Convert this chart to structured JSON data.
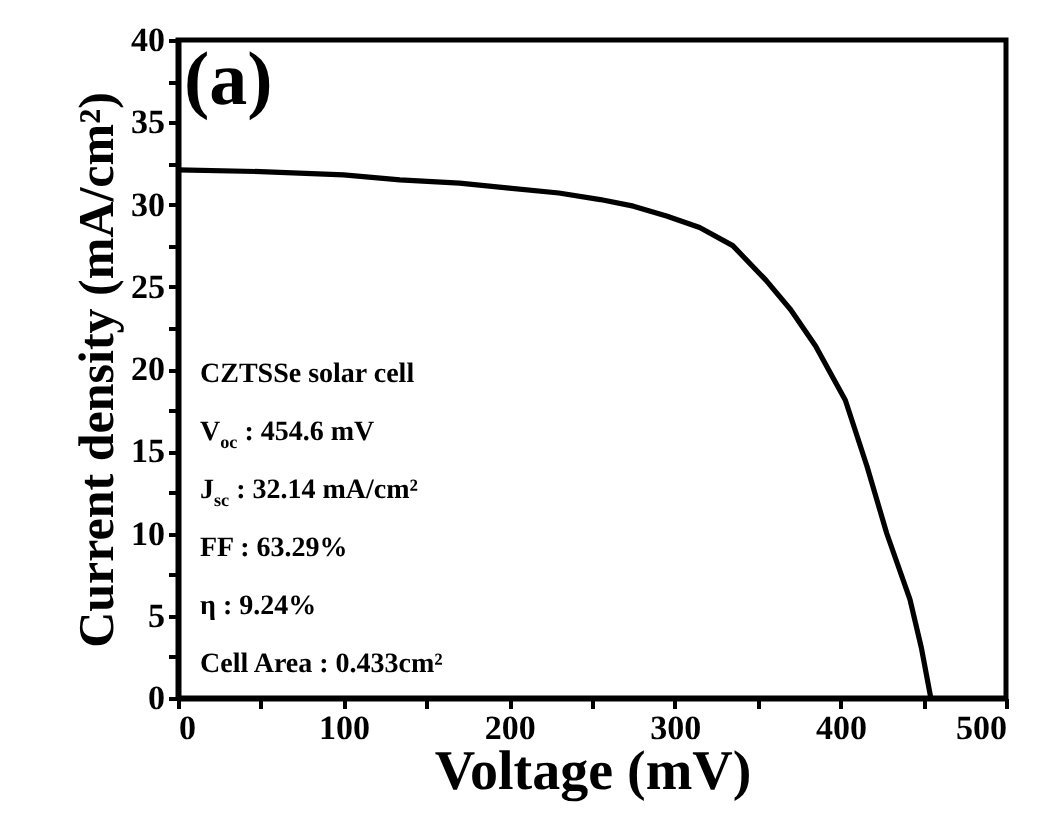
{
  "chart_data": {
    "type": "line",
    "xlabel": "Voltage (mV)",
    "ylabel": "Current density (mA/cm²)",
    "annotations": [
      "(a)",
      "CZTSSe solar cell",
      "V$_{oc}$ : 454.6 mV",
      "J$_{sc}$ : 32.14 mA/cm²",
      "FF : 63.29%",
      "η  : 9.24%",
      "Cell Area : 0.433cm²"
    ],
    "x": [
      0,
      50,
      100,
      134,
      170,
      200,
      230,
      255,
      275,
      295,
      315,
      335,
      355,
      370,
      385,
      403,
      416,
      428,
      442,
      449,
      454.6
    ],
    "series": [
      {
        "color": "#000000",
        "values": [
          32.1,
          32.0,
          31.8,
          31.5,
          31.3,
          31.0,
          30.7,
          30.3,
          29.9,
          29.3,
          28.6,
          27.5,
          25.4,
          23.6,
          21.4,
          18.1,
          14.1,
          10.0,
          6.0,
          3.0,
          0
        ]
      }
    ],
    "xlim": [
      0,
      500
    ],
    "ylim": [
      0,
      40
    ],
    "xticks": [
      0,
      {
        "value": 50,
        "label": null
      },
      100,
      {
        "value": 150,
        "label": null
      },
      200,
      {
        "value": 250,
        "label": null
      },
      300,
      {
        "value": 350,
        "label": null
      },
      400,
      {
        "value": 450,
        "label": null
      },
      500
    ],
    "yticks": [
      0,
      {
        "value": 2.5,
        "label": null
      },
      5,
      {
        "value": 7.5,
        "label": null
      },
      10,
      {
        "value": 12.5,
        "label": null
      },
      15,
      {
        "value": 17.5,
        "label": null
      },
      20,
      {
        "value": 22.5,
        "label": null
      },
      25,
      {
        "value": 27.5,
        "label": null
      },
      30,
      {
        "value": 32.5,
        "label": null
      },
      35,
      {
        "value": 37.5,
        "label": null
      },
      40
    ],
    "grid": false,
    "marker": "none",
    "line_style": "solid"
  }
}
